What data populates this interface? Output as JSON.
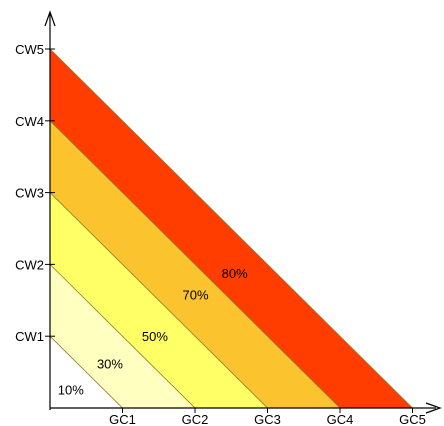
{
  "chart_data": {
    "type": "area",
    "x_ticks": [
      "GC1",
      "GC2",
      "GC3",
      "GC4",
      "GC5"
    ],
    "y_ticks": [
      "CW1",
      "CW2",
      "CW3",
      "CW4",
      "CW5"
    ],
    "zones": [
      {
        "label": "10%",
        "boundary": 1,
        "color": "#ffffff"
      },
      {
        "label": "30%",
        "boundary": 2,
        "color": "#ffffbf"
      },
      {
        "label": "50%",
        "boundary": 3,
        "color": "#ffff66"
      },
      {
        "label": "70%",
        "boundary": 4,
        "color": "#fbc32e"
      },
      {
        "label": "80%",
        "boundary": 5,
        "color": "#ff3d00"
      }
    ],
    "xlim": [
      0,
      5
    ],
    "ylim": [
      0,
      5
    ]
  }
}
